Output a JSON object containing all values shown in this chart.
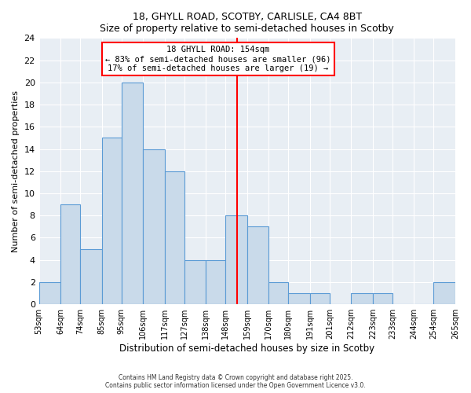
{
  "title": "18, GHYLL ROAD, SCOTBY, CARLISLE, CA4 8BT",
  "subtitle": "Size of property relative to semi-detached houses in Scotby",
  "xlabel": "Distribution of semi-detached houses by size in Scotby",
  "ylabel": "Number of semi-detached properties",
  "bin_labels": [
    "53sqm",
    "64sqm",
    "74sqm",
    "85sqm",
    "95sqm",
    "106sqm",
    "117sqm",
    "127sqm",
    "138sqm",
    "148sqm",
    "159sqm",
    "170sqm",
    "180sqm",
    "191sqm",
    "201sqm",
    "212sqm",
    "223sqm",
    "233sqm",
    "244sqm",
    "254sqm",
    "265sqm"
  ],
  "bin_edges": [
    53,
    64,
    74,
    85,
    95,
    106,
    117,
    127,
    138,
    148,
    159,
    170,
    180,
    191,
    201,
    212,
    223,
    233,
    244,
    254,
    265
  ],
  "heights_20": [
    2,
    9,
    5,
    15,
    20,
    14,
    12,
    4,
    4,
    8,
    7,
    2,
    1,
    1,
    0,
    1,
    1,
    0,
    0,
    2
  ],
  "bar_color": "#c9daea",
  "bar_edgecolor": "#5b9bd5",
  "vline_x": 154,
  "vline_color": "red",
  "ylim": [
    0,
    24
  ],
  "yticks": [
    0,
    2,
    4,
    6,
    8,
    10,
    12,
    14,
    16,
    18,
    20,
    22,
    24
  ],
  "annotation_title": "18 GHYLL ROAD: 154sqm",
  "annotation_line1": "← 83% of semi-detached houses are smaller (96)",
  "annotation_line2": "17% of semi-detached houses are larger (19) →",
  "background_color": "#e8eef4",
  "grid_color": "#ffffff",
  "footnote1": "Contains HM Land Registry data © Crown copyright and database right 2025.",
  "footnote2": "Contains public sector information licensed under the Open Government Licence v3.0."
}
